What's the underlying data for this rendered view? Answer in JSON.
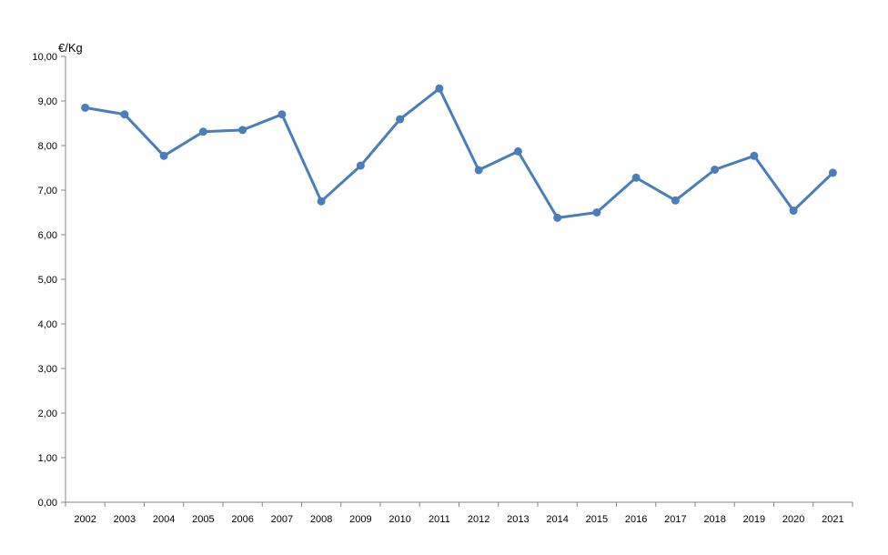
{
  "chart_data": {
    "type": "line",
    "unit_label": "€/Kg",
    "categories": [
      "2002",
      "2003",
      "2004",
      "2005",
      "2006",
      "2007",
      "2008",
      "2009",
      "2010",
      "2011",
      "2012",
      "2013",
      "2014",
      "2015",
      "2016",
      "2017",
      "2018",
      "2019",
      "2020",
      "2021"
    ],
    "series": [
      {
        "values": [
          8.85,
          8.7,
          7.77,
          8.31,
          8.35,
          8.7,
          6.75,
          7.55,
          8.59,
          9.28,
          7.45,
          7.87,
          6.38,
          6.5,
          7.28,
          6.77,
          7.46,
          7.77,
          6.54,
          7.39
        ],
        "color": "#4a7ebb"
      }
    ],
    "ylim": [
      0,
      10
    ],
    "y_ticks": [
      "0,00",
      "1,00",
      "2,00",
      "3,00",
      "4,00",
      "5,00",
      "6,00",
      "7,00",
      "8,00",
      "9,00",
      "10,00"
    ],
    "grid": false,
    "legend": "none",
    "axis_color": "#868686"
  }
}
